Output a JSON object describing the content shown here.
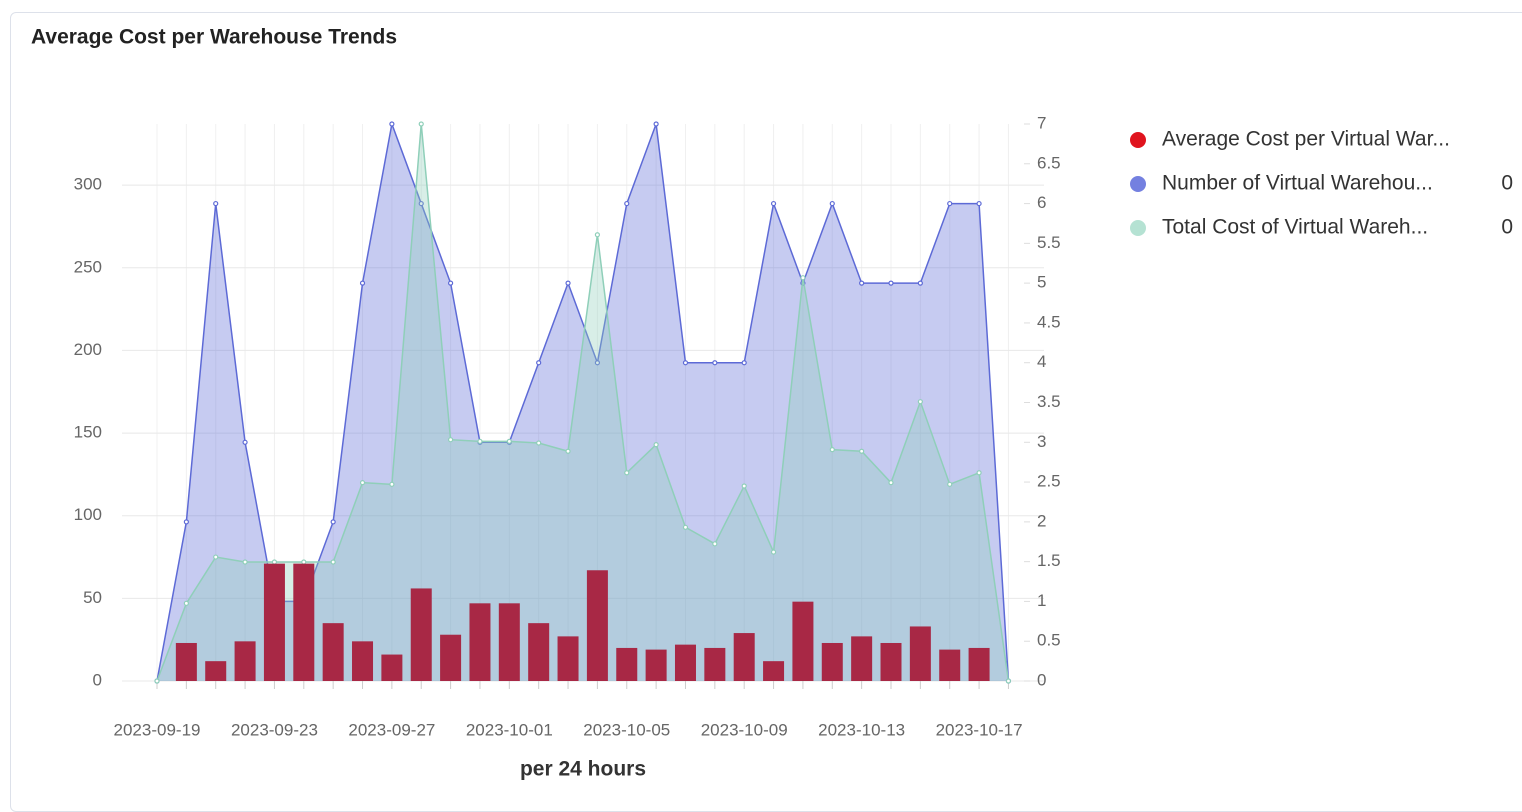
{
  "chart_data": {
    "type": "combo",
    "title": "Average Cost per Warehouse Trends",
    "xlabel": "per 24 hours",
    "categories": [
      "2023-09-19",
      null,
      null,
      null,
      "2023-09-23",
      null,
      null,
      null,
      "2023-09-27",
      null,
      null,
      null,
      "2023-10-01",
      null,
      null,
      null,
      "2023-10-05",
      null,
      null,
      null,
      "2023-10-09",
      null,
      null,
      null,
      "2023-10-13",
      null,
      null,
      null,
      "2023-10-17",
      null
    ],
    "ylim": [
      0,
      337
    ],
    "yticks": [
      0,
      50,
      100,
      150,
      200,
      250,
      300
    ],
    "y2lim": [
      0,
      7
    ],
    "y2ticks": [
      0,
      0.5,
      1,
      1.5,
      2,
      2.5,
      3,
      3.5,
      4,
      4.5,
      5,
      5.5,
      6,
      6.5,
      7
    ],
    "grid": true,
    "series": [
      {
        "name": "Average Cost per Virtual War...",
        "type": "bar",
        "color": "#a82845",
        "legend_color": "#e0141e",
        "values": [
          null,
          23,
          12,
          24,
          71,
          71,
          35,
          24,
          16,
          56,
          28,
          47,
          47,
          35,
          27,
          67,
          20,
          19,
          22,
          20,
          29,
          12,
          48,
          23,
          27,
          23,
          33,
          19,
          20,
          null
        ]
      },
      {
        "name": "Number of Virtual Warehou...",
        "legend_value": 0,
        "type": "area",
        "axis": "y2",
        "color": "#5d6ad6",
        "legend_color": "#7480e0",
        "values": [
          0,
          2,
          6,
          3,
          1,
          1,
          2,
          5,
          7,
          6,
          5,
          3,
          3,
          4,
          5,
          4,
          6,
          7,
          4,
          4,
          4,
          6,
          5,
          6,
          5,
          5,
          5,
          6,
          6,
          0
        ]
      },
      {
        "name": "Total Cost of Virtual Wareh...",
        "legend_value": 0,
        "type": "area",
        "color": "#8fcfb9",
        "legend_color": "#b5e2d3",
        "values": [
          0,
          47,
          75,
          72,
          72,
          72,
          72,
          120,
          119,
          337,
          146,
          145,
          145,
          144,
          139,
          270,
          126,
          143,
          93,
          83,
          118,
          78,
          244,
          140,
          139,
          120,
          169,
          119,
          126,
          0
        ]
      }
    ]
  }
}
